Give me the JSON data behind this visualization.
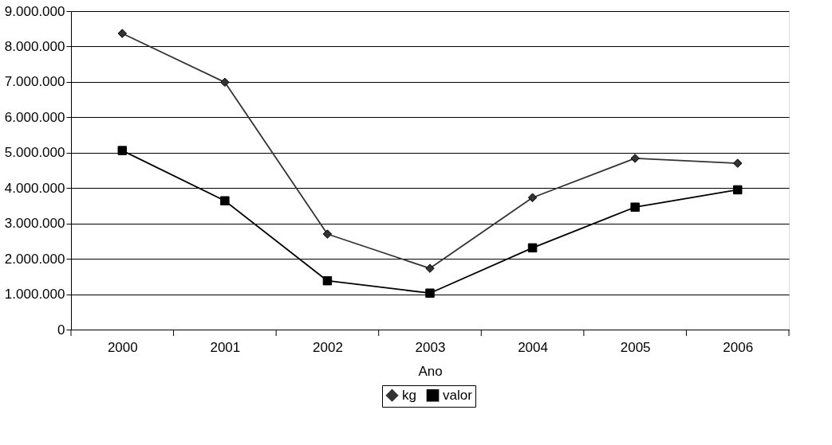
{
  "chart_data": {
    "type": "line",
    "xlabel": "Ano",
    "categories": [
      "2000",
      "2001",
      "2002",
      "2003",
      "2004",
      "2005",
      "2006"
    ],
    "series": [
      {
        "name": "kg",
        "color": "#333333",
        "marker": "diamond",
        "values": [
          8370000,
          6990000,
          2700000,
          1730000,
          3730000,
          4840000,
          4700000
        ]
      },
      {
        "name": "valor",
        "color": "#000000",
        "marker": "square",
        "values": [
          5060000,
          3640000,
          1380000,
          1030000,
          2310000,
          3460000,
          3950000
        ]
      }
    ],
    "ylim": [
      0,
      9000000
    ],
    "yticks": [
      0,
      {
        "value": 1000000,
        "label": "1.000.000"
      },
      {
        "value": 2000000,
        "label": "2.000.000"
      },
      {
        "value": 3000000,
        "label": "3.000.000"
      },
      {
        "value": 4000000,
        "label": "4.000.000"
      },
      {
        "value": 5000000,
        "label": "5.000.000"
      },
      {
        "value": 6000000,
        "label": "6.000.000"
      },
      {
        "value": 7000000,
        "label": "7.000.000"
      },
      {
        "value": 8000000,
        "label": "8.000.000"
      },
      {
        "value": 9000000,
        "label": "9.000.000"
      }
    ],
    "grid": "y",
    "legend": "bottom",
    "line_style": "solid"
  }
}
